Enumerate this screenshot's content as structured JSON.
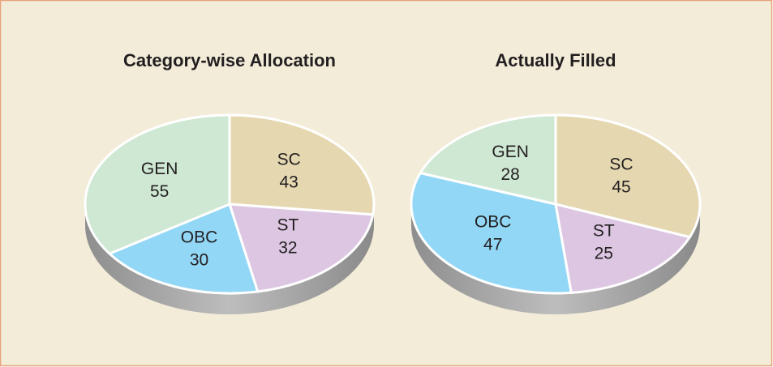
{
  "chart_data": [
    {
      "type": "pie",
      "title": "Category-wise Allocation",
      "categories": [
        "SC",
        "ST",
        "OBC",
        "GEN"
      ],
      "values": [
        43,
        32,
        30,
        55
      ],
      "colors": [
        "#e5d8b1",
        "#dcc6e2",
        "#92d7f5",
        "#cfe8d3"
      ]
    },
    {
      "type": "pie",
      "title": "Actually Filled",
      "categories": [
        "SC",
        "ST",
        "OBC",
        "GEN"
      ],
      "values": [
        45,
        25,
        47,
        28
      ],
      "colors": [
        "#e5d8b1",
        "#dcc6e2",
        "#92d7f5",
        "#cfe8d3"
      ]
    }
  ]
}
